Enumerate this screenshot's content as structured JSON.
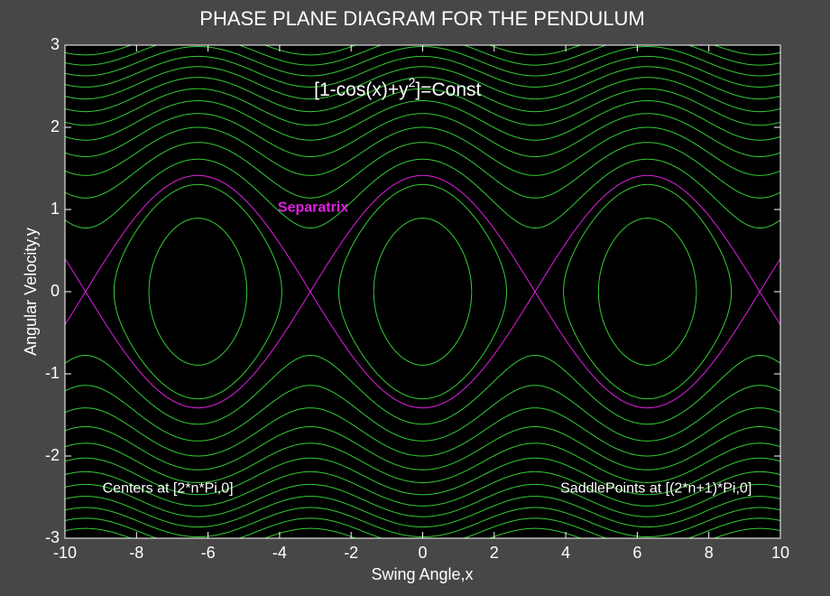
{
  "chart_data": {
    "type": "contour",
    "title": "PHASE PLANE DIAGRAM FOR THE PENDULUM",
    "x_label": "Swing Angle,x",
    "y_label": "Angular Velocity,y",
    "formula": [
      "[1-cos(x)+y",
      "2",
      "]=Const"
    ],
    "annotations": [
      "Centers at [2*n*Pi,0]",
      "SaddlePoints at [(2*n+1)*Pi,0]"
    ],
    "xlim": [
      -10,
      10
    ],
    "ylim": [
      -3,
      3
    ],
    "xticks": [
      -10,
      -8,
      -6,
      -4,
      -2,
      0,
      2,
      4,
      6,
      8,
      10
    ],
    "yticks": [
      -3,
      -2,
      -1,
      0,
      1,
      2,
      3
    ],
    "levels": [
      0.8,
      1.7,
      2.6,
      3.3,
      4.0,
      4.7,
      5.4,
      6.1,
      6.8,
      7.5,
      8.2,
      8.9,
      9.6,
      10.3
    ],
    "color": "#33cc33",
    "separatrix": {
      "label": "Separatrix",
      "level": 2,
      "color": "#e020e0"
    }
  }
}
